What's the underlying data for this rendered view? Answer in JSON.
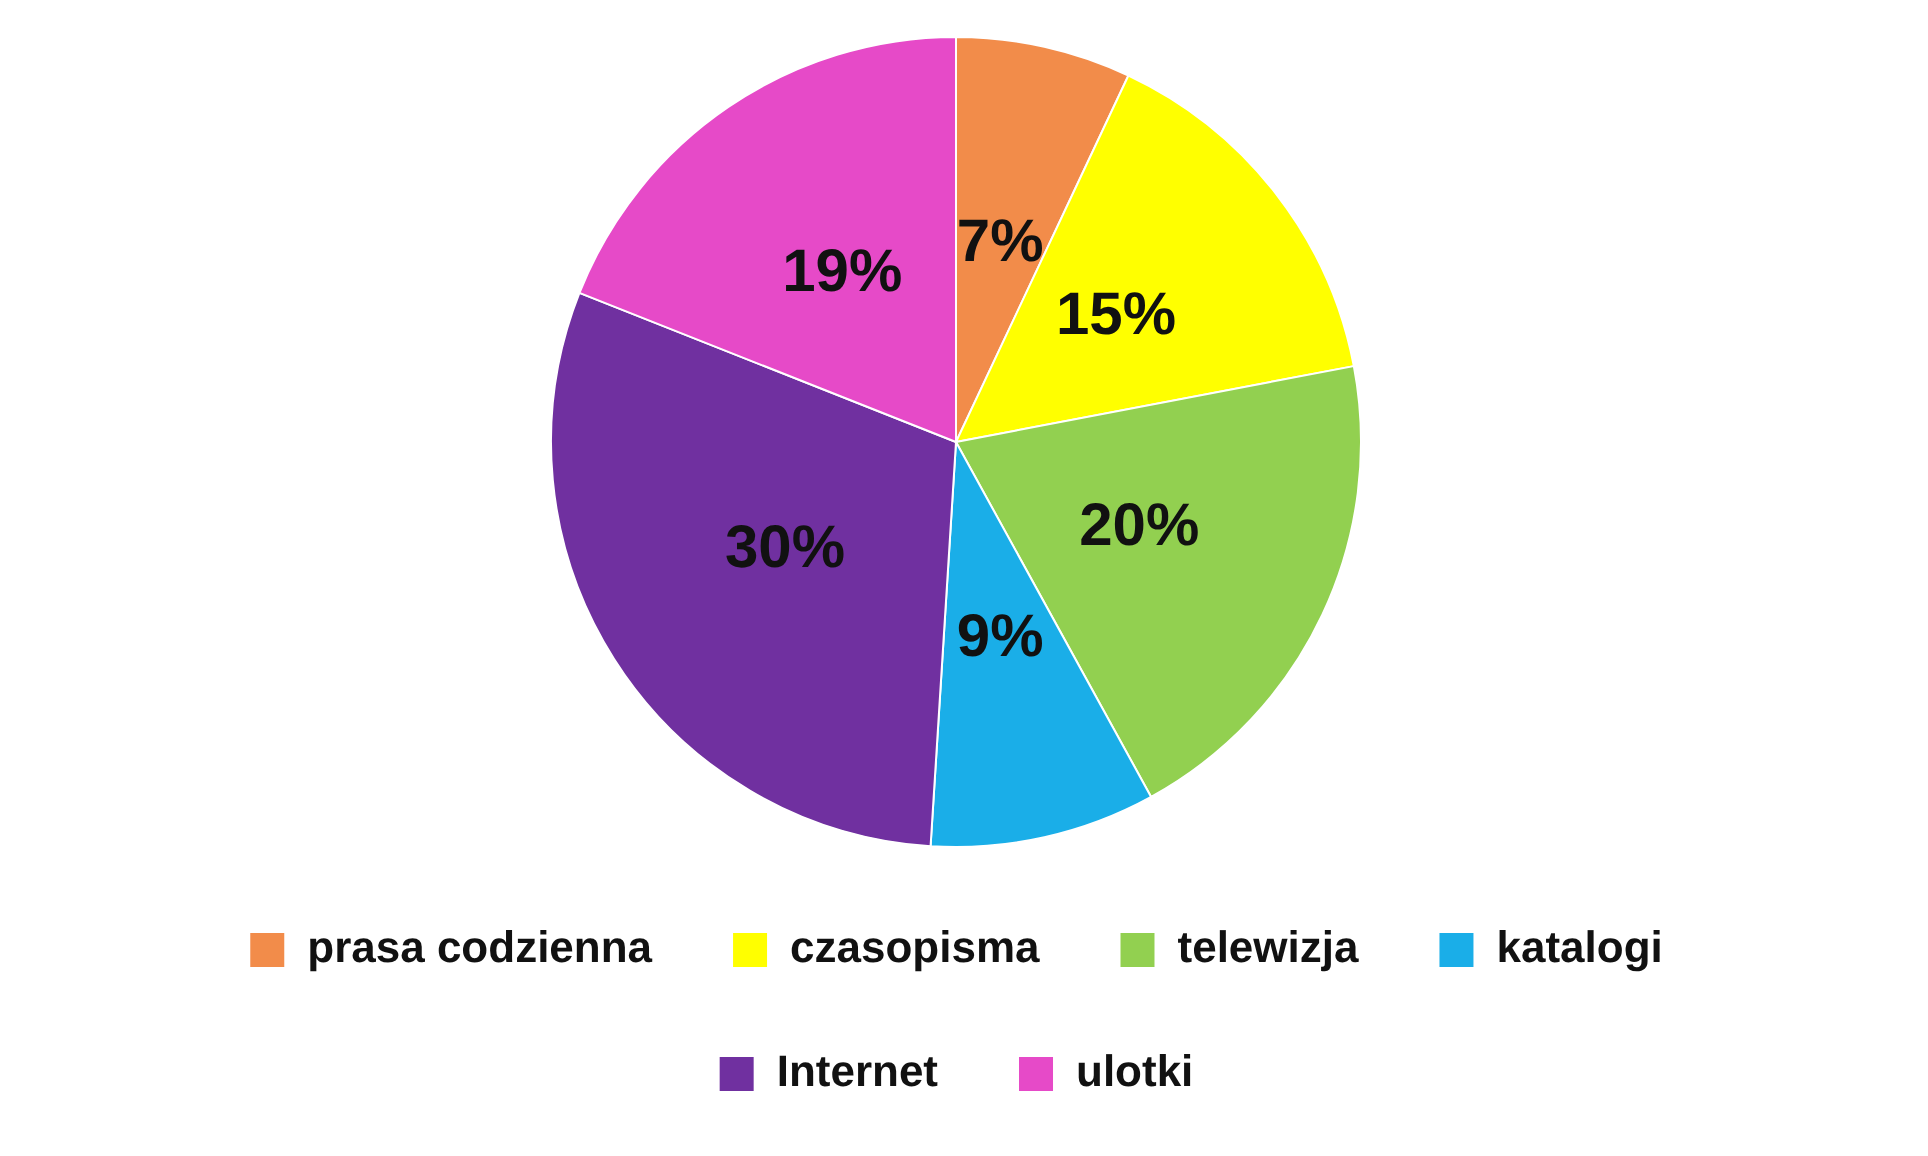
{
  "chart_data": {
    "type": "pie",
    "categories": [
      "prasa codzienna",
      "czasopisma",
      "telewizja",
      "katalogi",
      "Internet",
      "ulotki"
    ],
    "values": [
      7,
      15,
      20,
      9,
      30,
      19
    ],
    "colors": [
      "#f28c4a",
      "#ffff00",
      "#92d050",
      "#1aaee8",
      "#7030a0",
      "#e64ac8"
    ],
    "value_labels": [
      "7%",
      "15%",
      "20%",
      "9%",
      "30%",
      "19%"
    ],
    "legend": "bottom"
  }
}
